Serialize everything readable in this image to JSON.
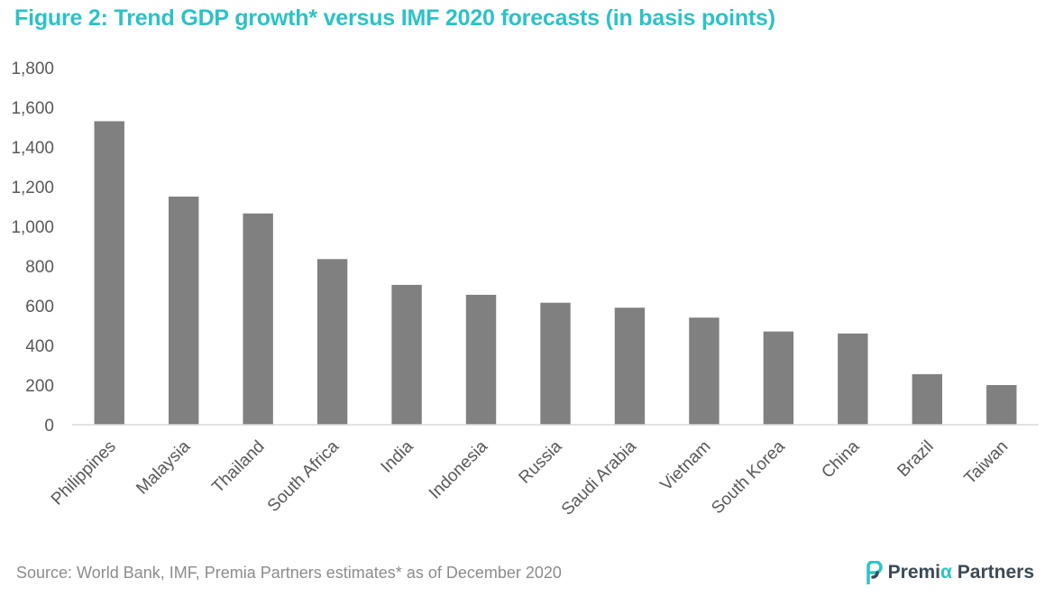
{
  "title": "Figure 2: Trend GDP growth* versus IMF 2020 forecasts (in basis points)",
  "source": "Source: World Bank, IMF, Premia Partners estimates* as of December 2020",
  "logo": {
    "name_part1": "Premi",
    "alpha": "α",
    "name_part2": " Partners",
    "icon": "premia-p-icon"
  },
  "colors": {
    "title": "#2cc2c7",
    "bar": "#808080",
    "axis": "#d9d9d9",
    "text": "#595959",
    "brand": "#3c4a56"
  },
  "chart_data": {
    "type": "bar",
    "title": "Figure 2: Trend GDP growth* versus IMF 2020 forecasts (in basis points)",
    "xlabel": "",
    "ylabel": "",
    "ylim": [
      0,
      1800
    ],
    "yticks": [
      0,
      200,
      400,
      600,
      800,
      1000,
      1200,
      1400,
      1600,
      1800
    ],
    "ytick_labels": [
      "0",
      "200",
      "400",
      "600",
      "800",
      "1,000",
      "1,200",
      "1,400",
      "1,600",
      "1,800"
    ],
    "grid": false,
    "legend": "none",
    "categories": [
      "Philippines",
      "Malaysia",
      "Thailand",
      "South Africa",
      "India",
      "Indonesia",
      "Russia",
      "Saudi Arabia",
      "Vietnam",
      "South Korea",
      "China",
      "Brazil",
      "Taiwan"
    ],
    "values": [
      1530,
      1150,
      1065,
      835,
      705,
      655,
      615,
      590,
      540,
      470,
      460,
      255,
      200
    ]
  }
}
